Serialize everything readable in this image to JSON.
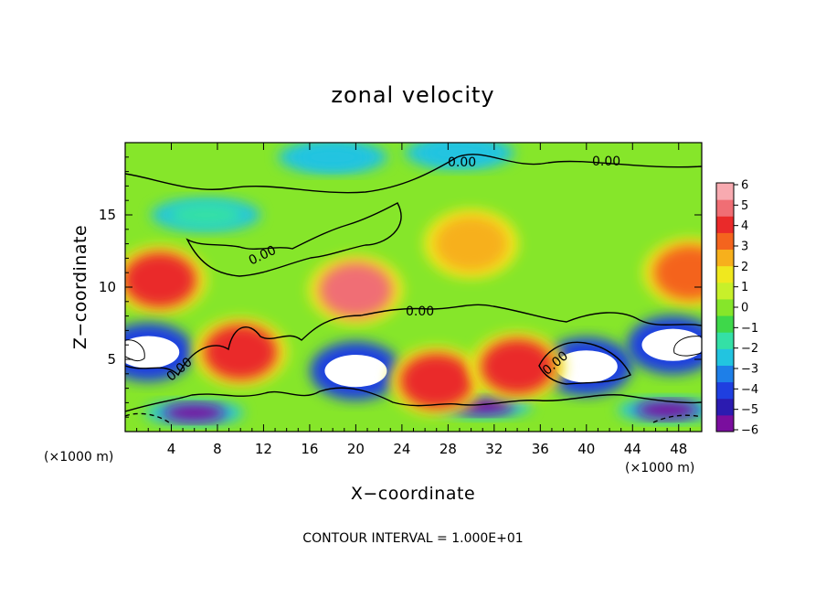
{
  "chart_data": {
    "type": "heatmap",
    "title": "zonal velocity",
    "xlabel": "X−coordinate",
    "ylabel": "Z−coordinate",
    "x_unit": "(×1000 m)",
    "y_unit": "(×1000 m)",
    "xlim": [
      0,
      50
    ],
    "ylim": [
      0,
      20
    ],
    "x_ticks": [
      "4",
      "8",
      "12",
      "16",
      "20",
      "24",
      "28",
      "32",
      "36",
      "40",
      "44",
      "48"
    ],
    "y_ticks": [
      "5",
      "10",
      "15"
    ],
    "colorbar": {
      "ticks": [
        "6",
        "5",
        "4",
        "3",
        "2",
        "1",
        "0",
        "−1",
        "−2",
        "−3",
        "−4",
        "−5",
        "−6"
      ],
      "range": [
        -6,
        6
      ],
      "colors": [
        "#7a0e9e",
        "#2b1bb0",
        "#1f3fe0",
        "#1e7fe8",
        "#22c4e0",
        "#34e0a6",
        "#3ed84a",
        "#86e62a",
        "#c8f02a",
        "#f0e81e",
        "#f7b01c",
        "#f4641e",
        "#ea2a2a",
        "#f06e74",
        "#f8aab0"
      ]
    },
    "contour_label": "0.00",
    "note": "CONTOUR INTERVAL = 1.000E+01",
    "features": [
      {
        "x": 20,
        "z": 9.8,
        "value": 5
      },
      {
        "x": 3,
        "z": 10.5,
        "value": 4.5
      },
      {
        "x": 30,
        "z": 13,
        "value": 2.5
      },
      {
        "x": 49,
        "z": 11,
        "value": 3
      },
      {
        "x": 20,
        "z": 4.2,
        "value": -7
      },
      {
        "x": 40,
        "z": 4.5,
        "value": -7
      },
      {
        "x": 2,
        "z": 5.5,
        "value": -7
      },
      {
        "x": 47.5,
        "z": 6,
        "value": -7
      },
      {
        "x": 6,
        "z": 1.3,
        "value": -6
      },
      {
        "x": 31,
        "z": 1.8,
        "value": -6
      },
      {
        "x": 47,
        "z": 1.5,
        "value": -6
      },
      {
        "x": 18,
        "z": 19,
        "value": -3
      },
      {
        "x": 29,
        "z": 19.3,
        "value": -2.5
      },
      {
        "x": 7,
        "z": 15,
        "value": -2
      },
      {
        "x": 10,
        "z": 5.5,
        "value": 4
      },
      {
        "x": 27,
        "z": 3.5,
        "value": 4
      },
      {
        "x": 34,
        "z": 4.5,
        "value": 4
      }
    ]
  }
}
